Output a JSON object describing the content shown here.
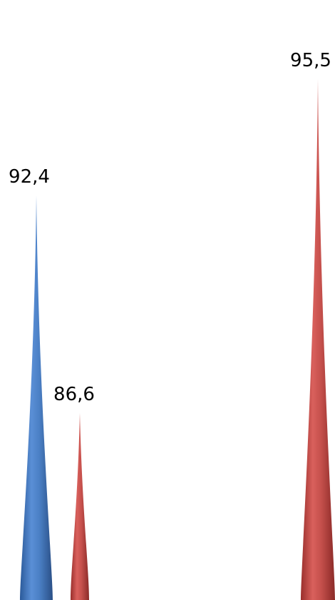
{
  "chart_data": {
    "type": "bar",
    "style": "3d-cone",
    "grid": false,
    "legend": "none",
    "points": [
      {
        "value": 92.4,
        "label": "92,4",
        "color": "#4f81bd"
      },
      {
        "value": 86.6,
        "label": "86,6",
        "color": "#c0504d"
      },
      {
        "value": 95.5,
        "label": "95,5",
        "color": "#c0504d"
      }
    ]
  }
}
